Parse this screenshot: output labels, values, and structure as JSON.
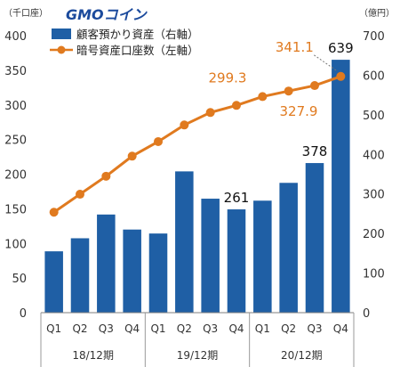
{
  "brand": {
    "logo_text": "GMOコイン",
    "accent": "#1b4a9c",
    "line_color": "#e07a1f"
  },
  "chart_data": {
    "type": "bar+line",
    "categories": [
      "Q1",
      "Q2",
      "Q3",
      "Q4",
      "Q1",
      "Q2",
      "Q3",
      "Q4",
      "Q1",
      "Q2",
      "Q3",
      "Q4"
    ],
    "period_groups": [
      {
        "label": "18/12期",
        "span": 4
      },
      {
        "label": "19/12期",
        "span": 4
      },
      {
        "label": "20/12期",
        "span": 4
      }
    ],
    "left_axis": {
      "unit": "（千口座）",
      "ylim": [
        0,
        400
      ],
      "ticks": [
        0,
        50,
        100,
        150,
        200,
        250,
        300,
        350,
        400
      ]
    },
    "right_axis": {
      "unit": "（億円）",
      "ylim": [
        0,
        700
      ],
      "ticks": [
        0,
        100,
        200,
        300,
        400,
        500,
        600,
        700
      ]
    },
    "series": [
      {
        "name": "顧客預かり資産（右軸）",
        "type": "bar",
        "axis": "right",
        "color": "#1f5fa5",
        "values": [
          155,
          188,
          248,
          210,
          200,
          357,
          288,
          261,
          283,
          328,
          378,
          639
        ]
      },
      {
        "name": "暗号資産口座数（左軸）",
        "type": "line",
        "axis": "left",
        "color": "#e07a1f",
        "values": [
          145,
          171,
          197,
          226,
          247,
          271,
          289,
          299.3,
          312,
          320,
          327.9,
          341.1
        ]
      }
    ],
    "data_labels": [
      {
        "series": 0,
        "index": 7,
        "text": "261"
      },
      {
        "series": 0,
        "index": 10,
        "text": "378"
      },
      {
        "series": 0,
        "index": 11,
        "text": "639"
      },
      {
        "series": 1,
        "index": 7,
        "text": "299.3"
      },
      {
        "series": 1,
        "index": 10,
        "text": "327.9"
      },
      {
        "series": 1,
        "index": 11,
        "text": "341.1"
      }
    ],
    "legend": "top-left",
    "grid": false
  }
}
